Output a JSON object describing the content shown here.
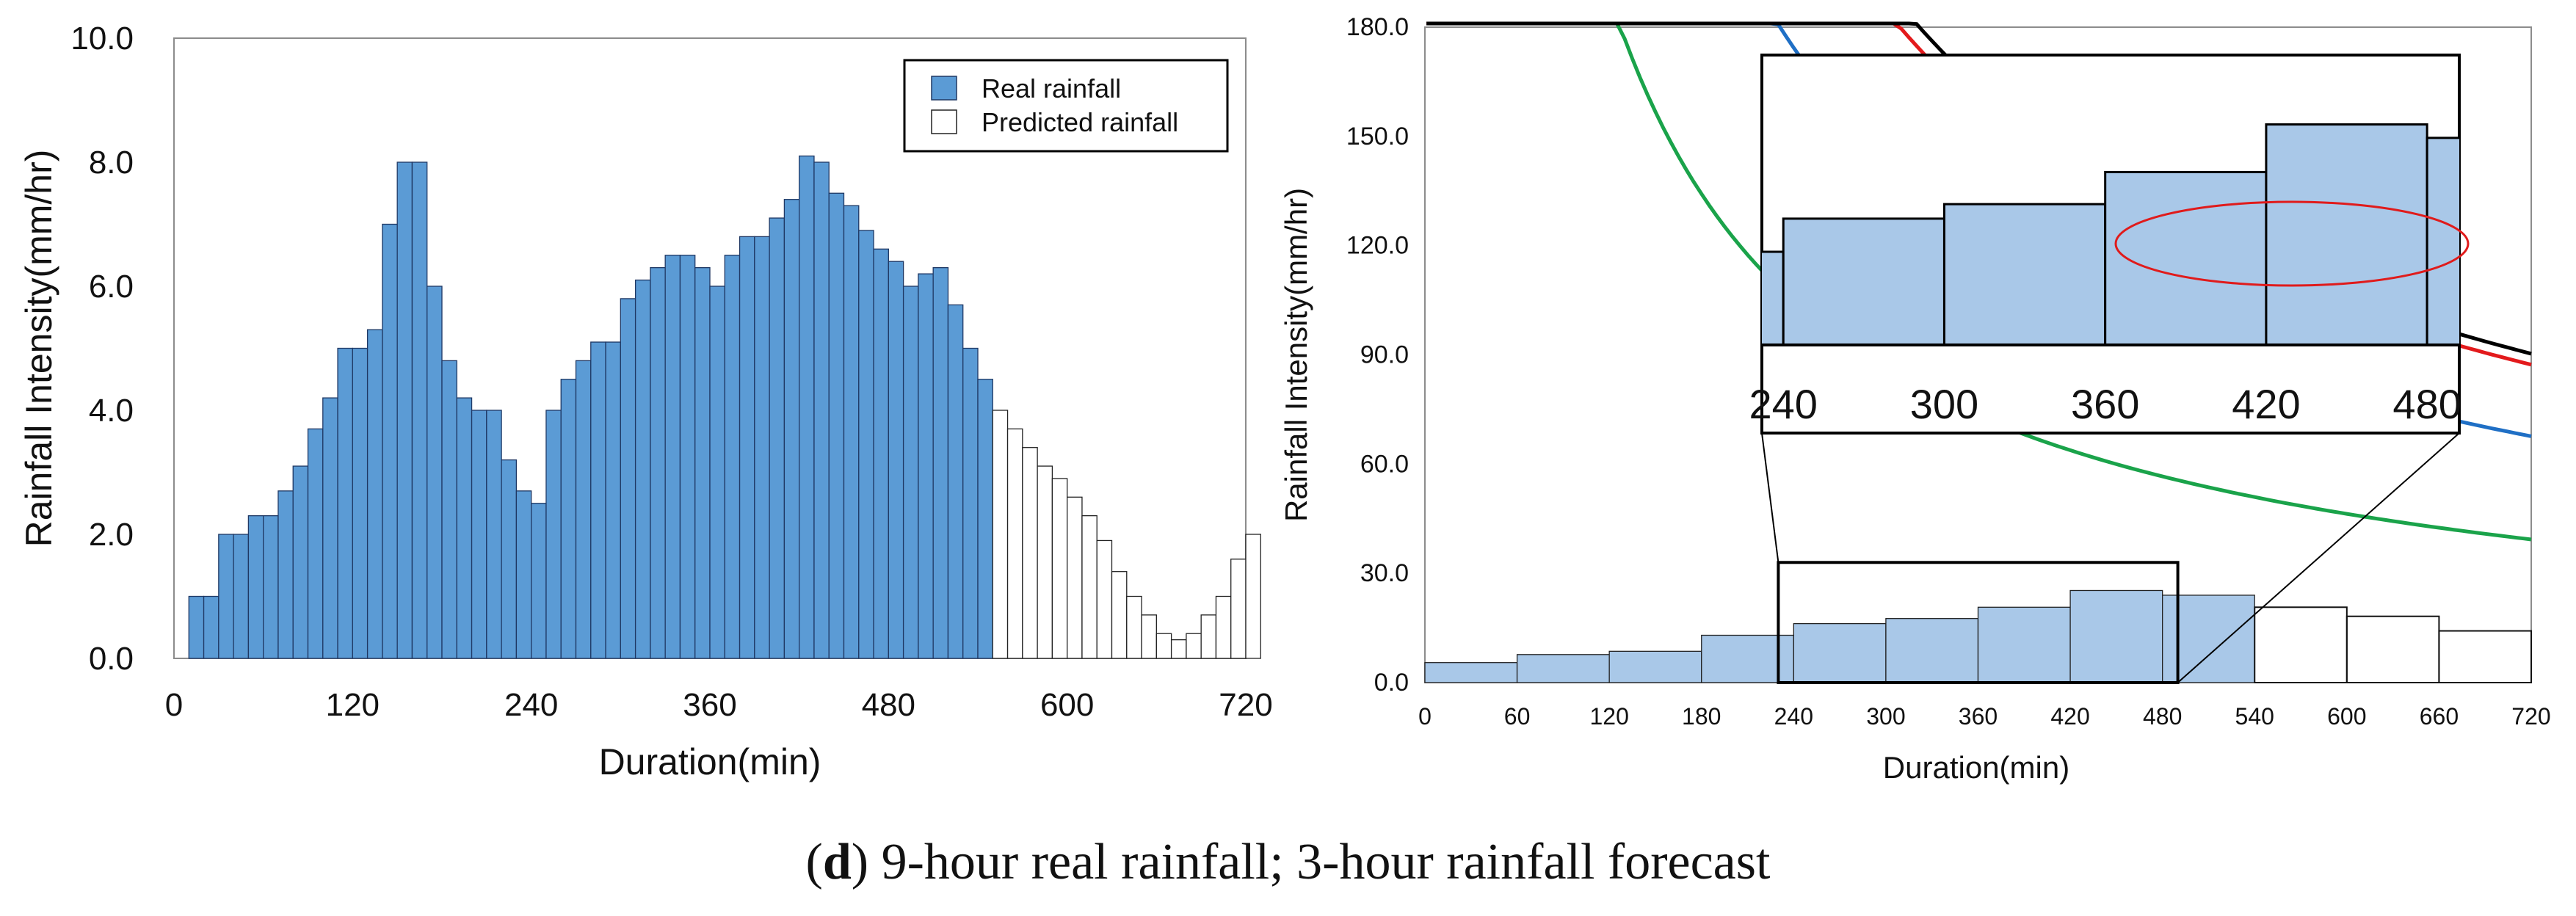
{
  "colors": {
    "real": "#5b9bd5",
    "real_edge": "#1f3864",
    "pred": "#ffffff",
    "overlay": "#a9c8e8",
    "black": "#000000",
    "red": "#e31a1c",
    "blue": "#1f6fc5",
    "green": "#1aa34a",
    "teal": "#2ca58d",
    "circle": "#e01b1b"
  },
  "caption": {
    "bold": "d",
    "text": "9-hour real rainfall; 3-hour rainfall forecast"
  },
  "chart_data": [
    {
      "type": "bar",
      "xlabel": "Duration(min)",
      "ylabel": "Rainfall Intensity(mm/hr)",
      "xlim": [
        0,
        720
      ],
      "ylim": [
        0,
        10
      ],
      "xticks": [
        "0",
        "120",
        "240",
        "360",
        "480",
        "600",
        "720"
      ],
      "yticks": [
        "0.0",
        "2.0",
        "4.0",
        "6.0",
        "8.0",
        "10.0"
      ],
      "bar_width_min": 10,
      "legend": {
        "position": "top-right",
        "real": "Real rainfall",
        "pred": "Predicted rainfall"
      },
      "series": [
        {
          "name": "Real rainfall",
          "start": 10,
          "values": [
            1.0,
            1.0,
            2.0,
            2.0,
            2.3,
            2.3,
            2.7,
            3.1,
            3.7,
            4.2,
            5.0,
            5.0,
            5.3,
            7.0,
            8.0,
            8.0,
            6.0,
            4.8,
            4.2,
            4.0,
            4.0,
            3.2,
            2.7,
            2.5,
            4.0,
            4.5,
            4.8,
            5.1,
            5.1,
            5.8,
            6.1,
            6.3,
            6.5,
            6.5,
            6.3,
            6.0,
            6.5,
            6.8,
            6.8,
            7.1,
            7.4,
            8.1,
            8.0,
            7.5,
            7.3,
            6.9,
            6.6,
            6.4,
            6.0,
            6.2,
            6.3,
            5.7,
            5.0,
            4.5
          ]
        },
        {
          "name": "Predicted rainfall",
          "start": 550,
          "values": [
            4.0,
            3.7,
            3.4,
            3.1,
            2.9,
            2.6,
            2.3,
            1.9,
            1.4,
            1.0,
            0.7,
            0.4,
            0.3,
            0.4,
            0.7,
            1.0,
            1.6,
            2.0
          ]
        }
      ]
    },
    {
      "type": "line",
      "xlabel": "Duration(min)",
      "ylabel": "Rainfall Intensity(mm/hr)",
      "xlim": [
        0,
        720
      ],
      "ylim": [
        0,
        180
      ],
      "xticks": [
        "0",
        "60",
        "120",
        "180",
        "240",
        "300",
        "360",
        "420",
        "480",
        "540",
        "600",
        "660",
        "720"
      ],
      "yticks": [
        "0.0",
        "30.0",
        "60.0",
        "90.0",
        "120.0",
        "150.0",
        "180.0"
      ],
      "bar_width_min": 60,
      "real_bars": [
        5.5,
        7.7,
        8.6,
        13.0,
        16.2,
        17.6,
        20.7,
        25.3,
        24.0
      ],
      "pred_bars": [
        20.7,
        18.2,
        14.2
      ],
      "curves": [
        {
          "name": "black",
          "a": 3000,
          "b": 13,
          "n": 0.88
        },
        {
          "name": "red",
          "a": 2900,
          "b": 13,
          "n": 0.88
        },
        {
          "name": "blue",
          "a": 2400,
          "b": 13,
          "n": 0.89
        },
        {
          "name": "green",
          "a": 1700,
          "b": 13,
          "n": 0.92
        }
      ],
      "zoom_box": {
        "x": [
          230,
          490
        ],
        "y": [
          0,
          33
        ]
      },
      "inset": {
        "xticks": [
          "240",
          "300",
          "360",
          "420",
          "480"
        ],
        "xlim": [
          232,
          492
        ],
        "ylim": [
          4,
          32
        ]
      }
    }
  ]
}
